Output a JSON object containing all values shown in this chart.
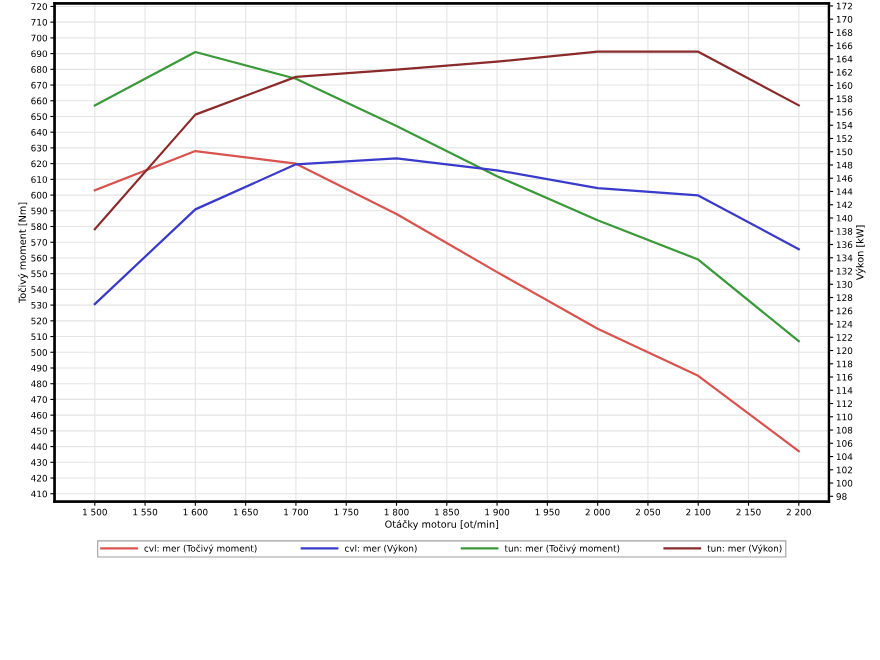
{
  "chart_data": {
    "type": "line",
    "xlabel": "Otáčky motoru [ot/min]",
    "ylabel": "Točivý moment [Nm]",
    "y2label": "Výkon [kW]",
    "x": [
      1500,
      1600,
      1700,
      1800,
      1900,
      2000,
      2100,
      2200
    ],
    "series": [
      {
        "name": "cvl: mer (Točivý moment)",
        "color": "#d9534f",
        "values": [
          603,
          628,
          620,
          588,
          551,
          515,
          485,
          437
        ]
      },
      {
        "name": "cvl: mer (Výkon)",
        "color": "#3a3acb",
        "axis": "y2",
        "values": [
          127,
          141.3,
          148.1,
          149,
          147.2,
          144.5,
          143.4,
          135.3
        ]
      },
      {
        "name": "tun: mer (Točivý moment)",
        "color": "#3a9a3a",
        "values": [
          657,
          691,
          674,
          644,
          612,
          584,
          559,
          507
        ]
      },
      {
        "name": "tun: mer (Výkon)",
        "color": "#8b2a2a",
        "axis": "y2",
        "values": [
          138.3,
          155.6,
          161.3,
          162.4,
          163.6,
          165.1,
          165.1,
          157
        ]
      }
    ],
    "xlim": [
      1460,
      2230
    ],
    "xticks": [
      {
        "value": 1500,
        "label": "1 500"
      },
      {
        "value": 1550,
        "label": "1 550"
      },
      {
        "value": 1600,
        "label": "1 600"
      },
      {
        "value": 1650,
        "label": "1 650"
      },
      {
        "value": 1700,
        "label": "1 700"
      },
      {
        "value": 1750,
        "label": "1 750"
      },
      {
        "value": 1800,
        "label": "1 800"
      },
      {
        "value": 1850,
        "label": "1 850"
      },
      {
        "value": 1900,
        "label": "1 900"
      },
      {
        "value": 1950,
        "label": "1 950"
      },
      {
        "value": 2000,
        "label": "2 000"
      },
      {
        "value": 2050,
        "label": "2 050"
      },
      {
        "value": 2100,
        "label": "2 100"
      },
      {
        "value": 2150,
        "label": "2 150"
      },
      {
        "value": 2200,
        "label": "2 200"
      }
    ],
    "ylim": [
      405,
      722
    ],
    "yticks": [
      410,
      420,
      430,
      440,
      450,
      460,
      470,
      480,
      490,
      500,
      510,
      520,
      530,
      540,
      550,
      560,
      570,
      580,
      590,
      600,
      610,
      620,
      630,
      640,
      650,
      660,
      670,
      680,
      690,
      700,
      710,
      720
    ],
    "y2lim": [
      97.2,
      172.4
    ],
    "y2ticks": [
      98,
      100,
      102,
      104,
      106,
      108,
      110,
      112,
      114,
      116,
      118,
      120,
      122,
      124,
      126,
      128,
      130,
      132,
      134,
      136,
      138,
      140,
      142,
      144,
      146,
      148,
      150,
      152,
      154,
      156,
      158,
      160,
      162,
      164,
      166,
      168,
      170,
      172
    ],
    "grid": true,
    "legend": "bottom",
    "marker": "none",
    "line_style": "solid"
  }
}
